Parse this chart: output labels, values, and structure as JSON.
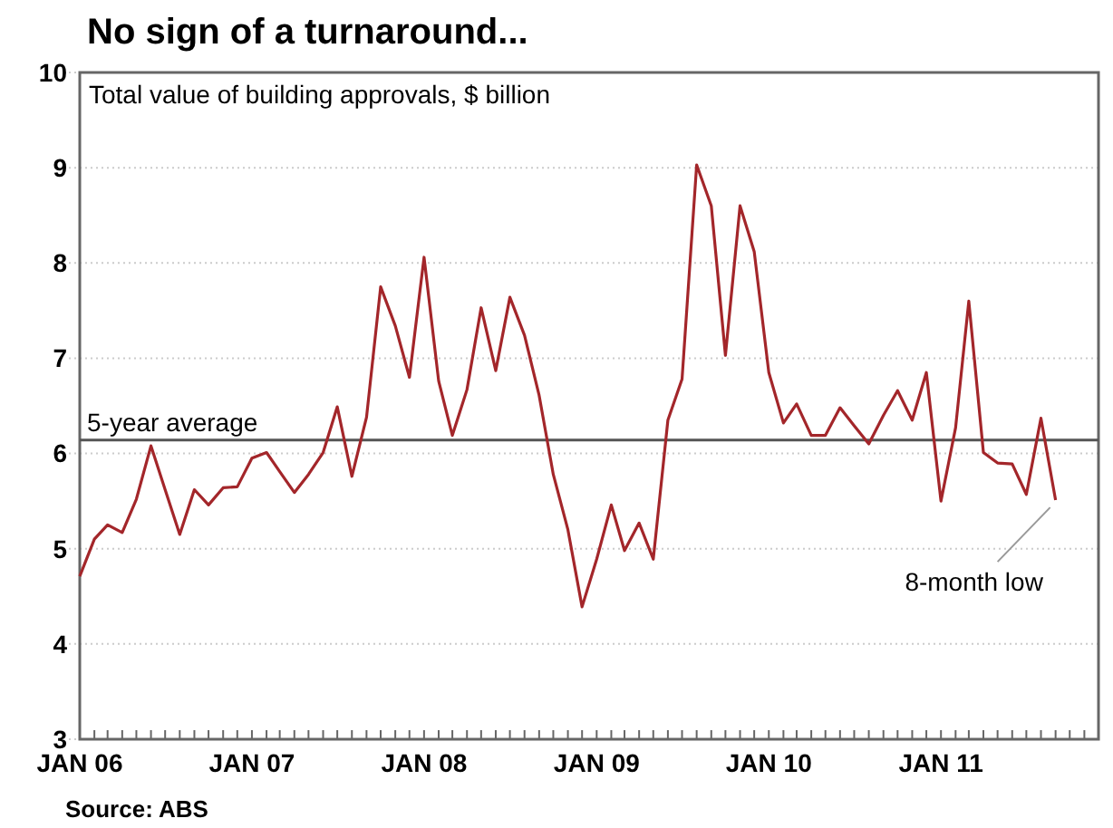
{
  "chart_data": {
    "type": "line",
    "title": "No sign of a turnaround...",
    "subtitle": "Total value of building approvals, $ billion",
    "x": [
      "2006-01",
      "2006-02",
      "2006-03",
      "2006-04",
      "2006-05",
      "2006-06",
      "2006-07",
      "2006-08",
      "2006-09",
      "2006-10",
      "2006-11",
      "2006-12",
      "2007-01",
      "2007-02",
      "2007-03",
      "2007-04",
      "2007-05",
      "2007-06",
      "2007-07",
      "2007-08",
      "2007-09",
      "2007-10",
      "2007-11",
      "2007-12",
      "2008-01",
      "2008-02",
      "2008-03",
      "2008-04",
      "2008-05",
      "2008-06",
      "2008-07",
      "2008-08",
      "2008-09",
      "2008-10",
      "2008-11",
      "2008-12",
      "2009-01",
      "2009-02",
      "2009-03",
      "2009-04",
      "2009-05",
      "2009-06",
      "2009-07",
      "2009-08",
      "2009-09",
      "2009-10",
      "2009-11",
      "2009-12",
      "2010-01",
      "2010-02",
      "2010-03",
      "2010-04",
      "2010-05",
      "2010-06",
      "2010-07",
      "2010-08",
      "2010-09",
      "2010-10",
      "2010-11",
      "2010-12",
      "2011-01",
      "2011-02",
      "2011-03",
      "2011-04",
      "2011-05",
      "2011-06",
      "2011-07",
      "2011-08",
      "2011-09"
    ],
    "series": [
      {
        "color": "#a3262a",
        "values": [
          4.71,
          5.1,
          5.25,
          5.17,
          5.52,
          6.08,
          5.62,
          5.15,
          5.62,
          5.46,
          5.64,
          5.65,
          5.95,
          6.01,
          5.81,
          5.59,
          5.78,
          6.01,
          6.49,
          5.76,
          6.38,
          7.75,
          7.34,
          6.8,
          8.06,
          6.76,
          6.19,
          6.67,
          7.53,
          6.87,
          7.64,
          7.24,
          6.61,
          5.78,
          5.2,
          4.39,
          4.89,
          5.46,
          4.98,
          5.27,
          4.89,
          6.35,
          6.78,
          9.03,
          8.6,
          7.03,
          8.6,
          8.12,
          6.85,
          6.32,
          6.52,
          6.19,
          6.19,
          6.48,
          6.29,
          6.1,
          6.4,
          6.66,
          6.35,
          6.85,
          5.5,
          6.27,
          7.6,
          6.01,
          5.9,
          5.89,
          5.57,
          6.37,
          5.51
        ]
      }
    ],
    "xlim": [
      "2006-01",
      "2011-12"
    ],
    "xticks": [
      {
        "value": "2006-01",
        "label": "JAN 06"
      },
      {
        "value": "2007-01",
        "label": "JAN 07"
      },
      {
        "value": "2008-01",
        "label": "JAN 08"
      },
      {
        "value": "2009-01",
        "label": "JAN 09"
      },
      {
        "value": "2010-01",
        "label": "JAN 10"
      },
      {
        "value": "2011-01",
        "label": "JAN 11"
      }
    ],
    "ylim": [
      3,
      10
    ],
    "yticks": [
      3,
      4,
      5,
      6,
      7,
      8,
      9,
      10
    ],
    "grid": "y",
    "marker": "none",
    "line_style": "solid",
    "ref_lines": [
      {
        "axis": "y",
        "value": 6.14,
        "label": "5-year average",
        "color": "#555555"
      }
    ],
    "annotations": [
      {
        "text": "8-month low",
        "x": "2011-09",
        "y": 5.51
      },
      "Source: ABS"
    ]
  }
}
